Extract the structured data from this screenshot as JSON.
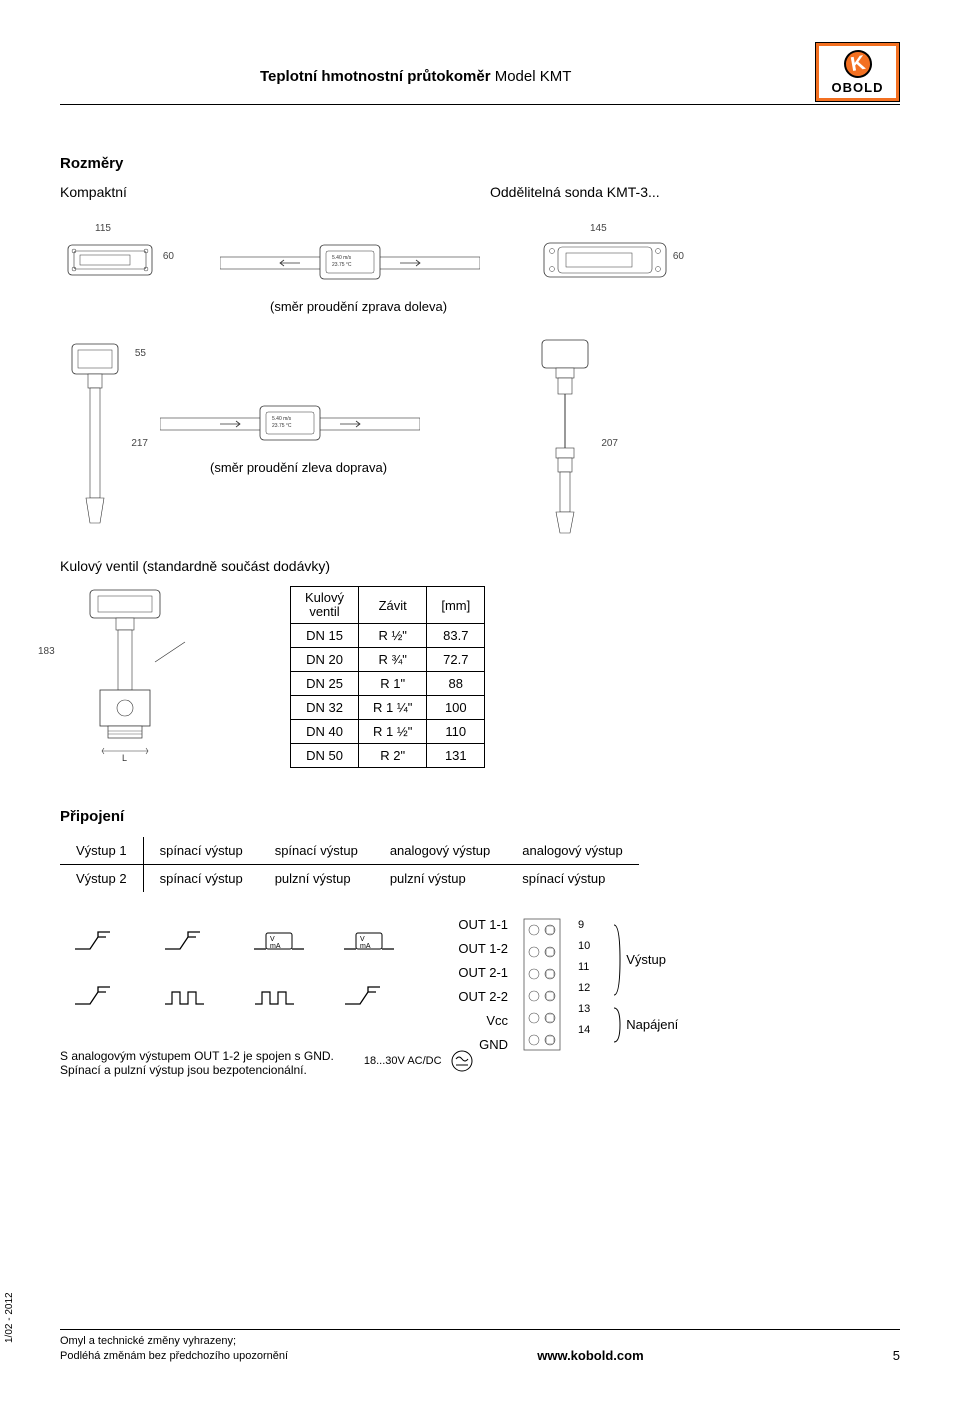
{
  "header": {
    "title_prefix": "Teplotní hmotnostní průtokoměr",
    "title_model": " Model KMT",
    "logo_letter": "K",
    "logo_brand": "OBOLD"
  },
  "sections": {
    "dimensions": "Rozměry",
    "compact": "Kompaktní",
    "remote": "Oddělitelná sonda KMT-3...",
    "flow_left": "(směr proudění zprava doleva)",
    "flow_right": "(směr proudění zleva doprava)",
    "ball_valve": "Kulový ventil (standardně součást dodávky)",
    "connection": "Připojení"
  },
  "dims": {
    "d115": "115",
    "d145": "145",
    "d60": "60",
    "d55": "55",
    "d217": "217",
    "d207": "207",
    "d183": "183",
    "L": "L",
    "sensor1": "5.40 m/s",
    "sensor2": "23.75 °C"
  },
  "valve_table": {
    "headers": [
      "Kulový ventil",
      "Závit",
      "[mm]"
    ],
    "rows": [
      [
        "DN 15",
        "R ½\"",
        "83.7"
      ],
      [
        "DN 20",
        "R ¾\"",
        "72.7"
      ],
      [
        "DN 25",
        "R 1\"",
        "88"
      ],
      [
        "DN 32",
        "R 1 ¼\"",
        "100"
      ],
      [
        "DN 40",
        "R 1 ½\"",
        "110"
      ],
      [
        "DN 50",
        "R 2\"",
        "131"
      ]
    ]
  },
  "conn_table": {
    "out1_label": "Výstup 1",
    "out2_label": "Výstup 2",
    "spinaci": "spínací výstup",
    "pulzni": "pulzní výstup",
    "analog": "analogový výstup"
  },
  "conn_diagram": {
    "out11": "OUT 1-1",
    "out12": "OUT 1-2",
    "out21": "OUT 2-1",
    "out22": "OUT 2-2",
    "vcc": "Vcc",
    "gnd": "GND",
    "vma": "V mA",
    "power": "18...30V AC/DC",
    "pins": [
      "9",
      "10",
      "11",
      "12",
      "13",
      "14"
    ],
    "vystup": "Výstup",
    "napajeni": "Napájení"
  },
  "notes": {
    "analog": "S analogovým výstupem OUT 1-2 je spojen s GND.",
    "bezpot": "Spínací a pulzní výstup jsou bezpotencionální."
  },
  "footer": {
    "line1": "Omyl a technické změny vyhrazeny;",
    "line2": "Podléhá změnám bez předchozího upozornění",
    "center": "www.kobold.com",
    "page": "5",
    "date": "1/02 - 2012"
  }
}
